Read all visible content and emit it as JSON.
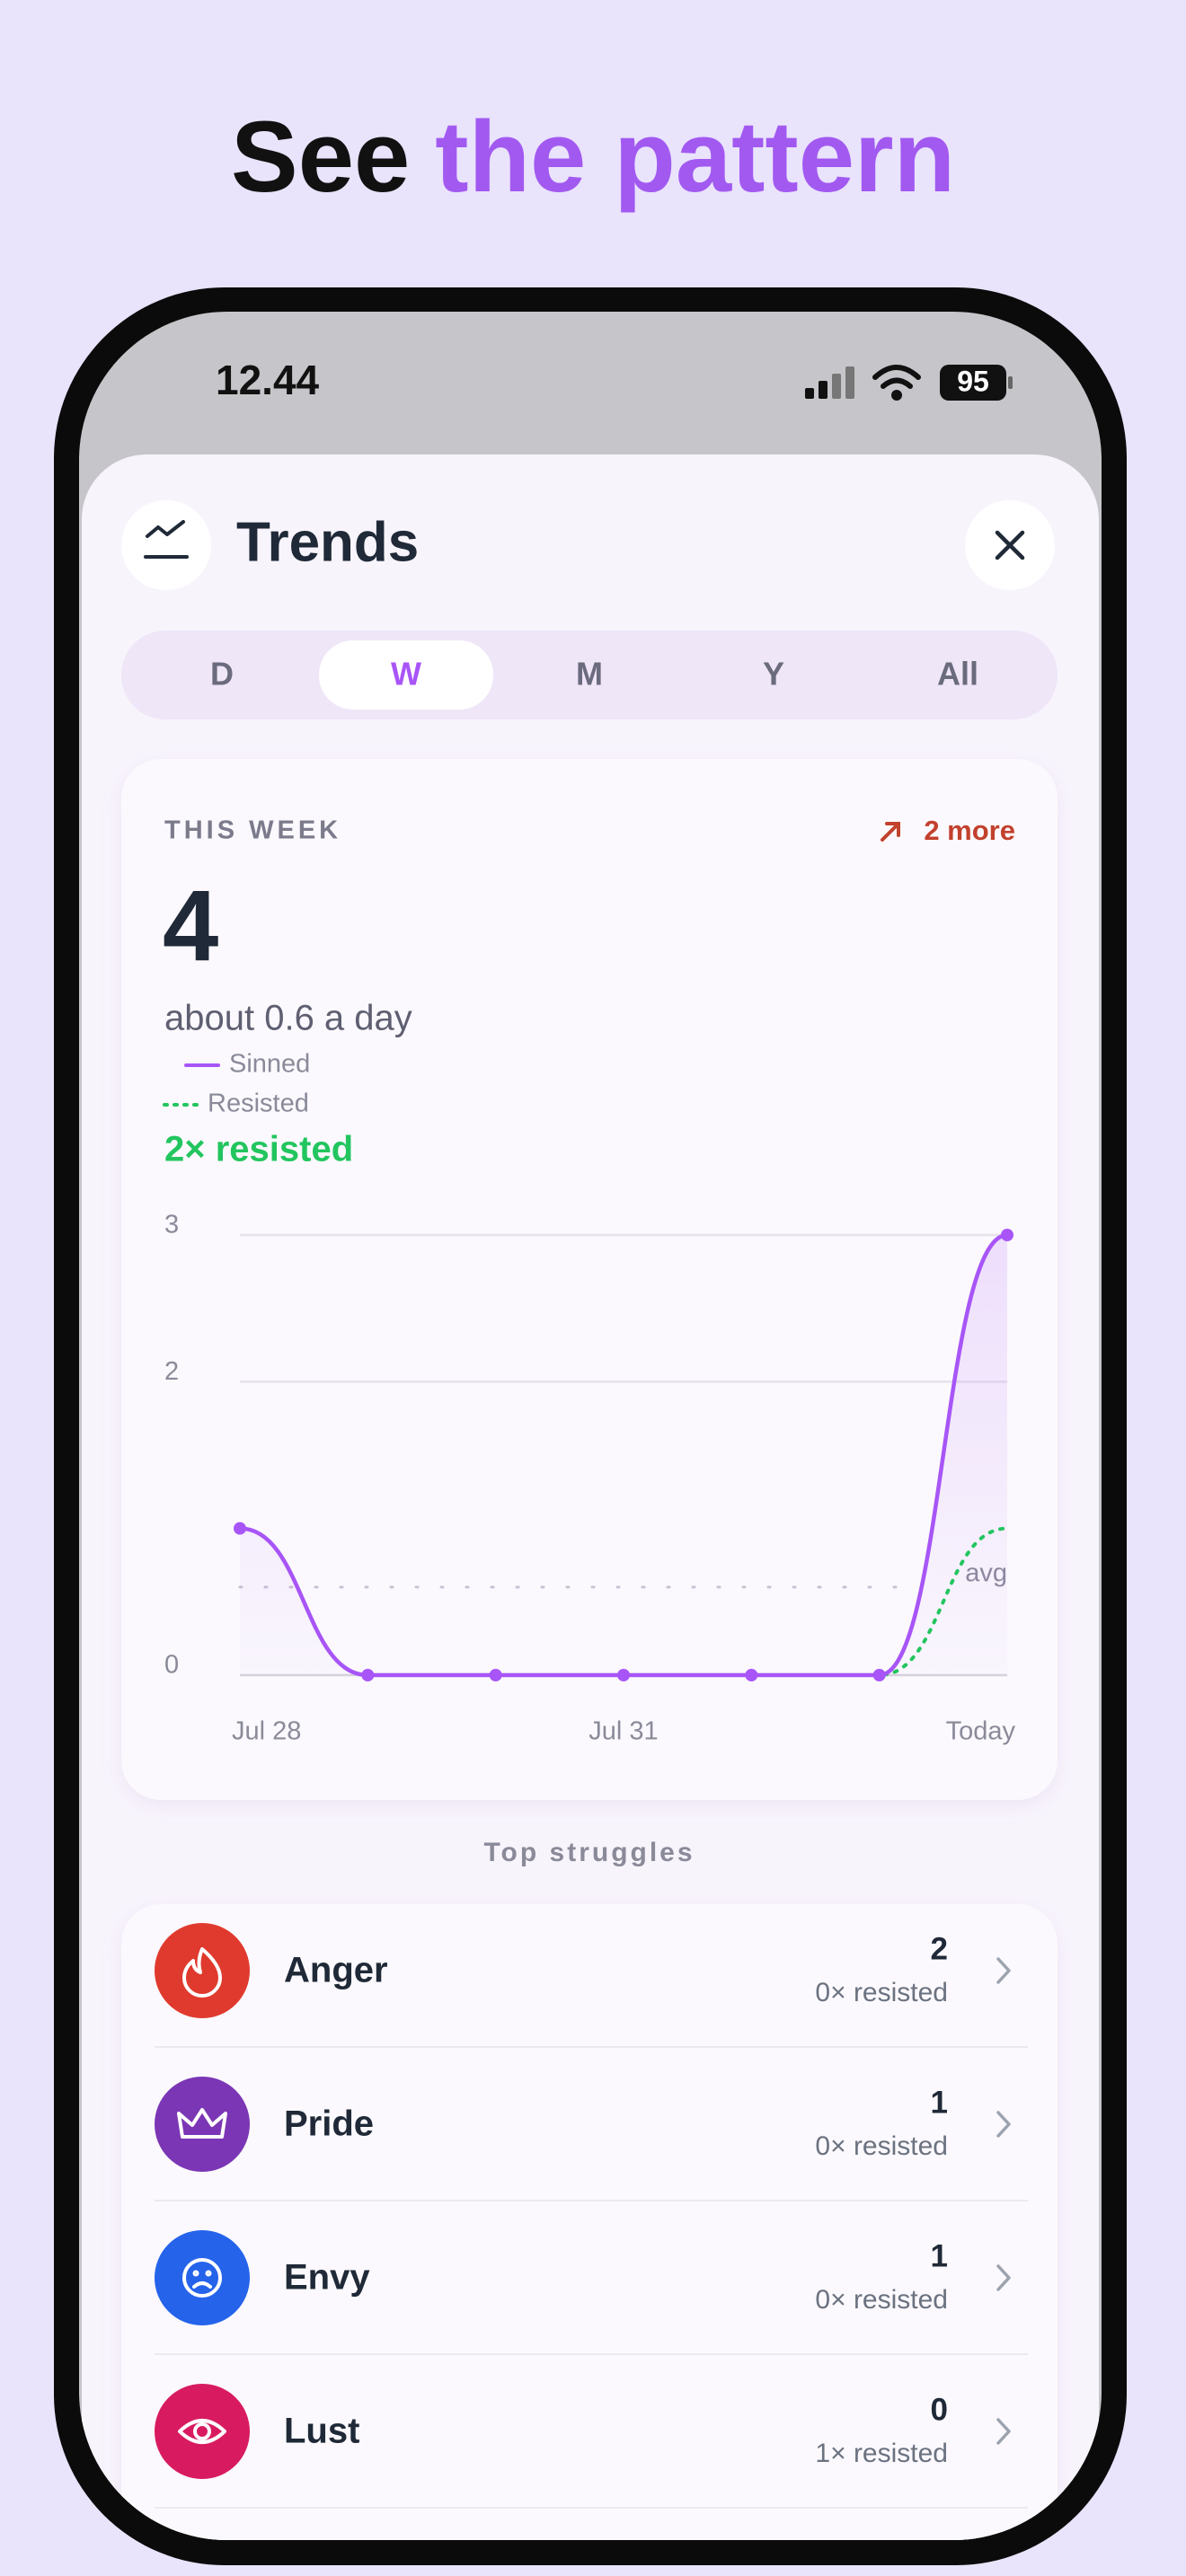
{
  "headline": {
    "prefix": "See",
    "highlight": "the pattern"
  },
  "status_bar": {
    "time": "12.44",
    "battery": "95"
  },
  "screen": {
    "title": "Trends",
    "tabs": [
      "D",
      "W",
      "M",
      "Y",
      "All"
    ],
    "selected_tab": 1,
    "summary": {
      "period": "THIS WEEK",
      "change": "2 more",
      "total": 4,
      "rate": "about 0.6 a day",
      "resisted": "2× resisted"
    },
    "struggles_title": "Top struggles",
    "struggles": [
      {
        "name": "Anger",
        "count": 2,
        "resisted": "0× resisted",
        "color": "#e03a2e"
      },
      {
        "name": "Pride",
        "count": 1,
        "resisted": "0× resisted",
        "color": "#7b36b5"
      },
      {
        "name": "Envy",
        "count": 1,
        "resisted": "0× resisted",
        "color": "#2563eb"
      },
      {
        "name": "Lust",
        "count": 0,
        "resisted": "1× resisted",
        "color": "#d81b60"
      }
    ]
  },
  "chart_data": {
    "type": "line",
    "categories": [
      "Jul 28",
      null,
      null,
      "Jul 31",
      null,
      null,
      "Today"
    ],
    "series": [
      {
        "name": "Sinned",
        "color": "#a855f7",
        "style": "solid",
        "values": [
          1,
          0,
          0,
          0,
          0,
          0,
          3
        ]
      },
      {
        "name": "Resisted",
        "color": "#22c55e",
        "style": "dotted",
        "values": [
          1,
          0,
          0,
          0,
          0,
          0,
          1
        ]
      }
    ],
    "ylim": [
      0,
      3
    ],
    "yticks": [
      0,
      2,
      3
    ],
    "grid": true,
    "average": 0.6,
    "average_label": "avg"
  }
}
